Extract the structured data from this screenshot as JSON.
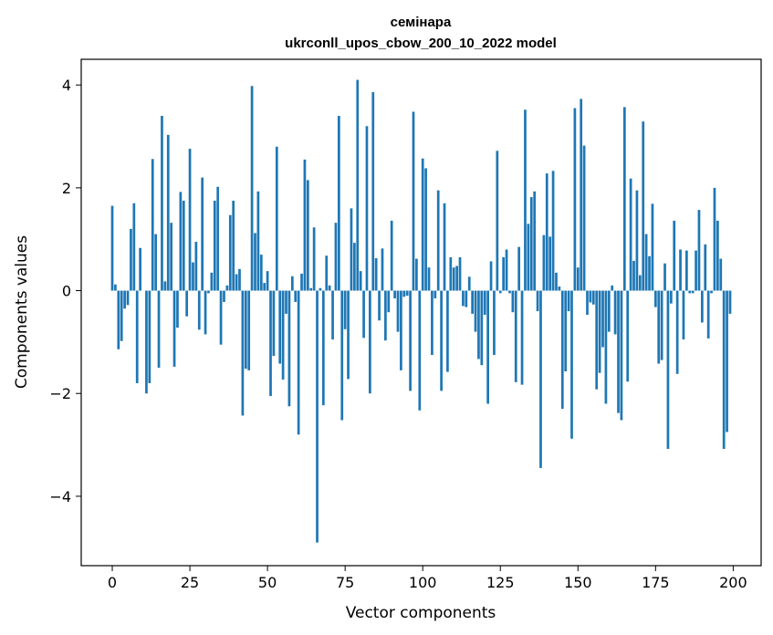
{
  "chart_data": {
    "type": "bar",
    "title": "семінара",
    "subtitle": "ukrconll_upos_cbow_200_10_2022 model",
    "xlabel": "Vector components",
    "ylabel": "Components values",
    "xlim": [
      -10,
      209
    ],
    "ylim": [
      -5.35,
      4.5
    ],
    "xticks": [
      0,
      25,
      50,
      75,
      100,
      125,
      150,
      175,
      200
    ],
    "yticks": [
      -4,
      -2,
      0,
      2,
      4
    ],
    "ytick_labels": [
      "−4",
      "−2",
      "0",
      "2",
      "4"
    ],
    "grid": false,
    "bar_color": "#1f77b4",
    "x": [
      0,
      1,
      2,
      3,
      4,
      5,
      6,
      7,
      8,
      9,
      10,
      11,
      12,
      13,
      14,
      15,
      16,
      17,
      18,
      19,
      20,
      21,
      22,
      23,
      24,
      25,
      26,
      27,
      28,
      29,
      30,
      31,
      32,
      33,
      34,
      35,
      36,
      37,
      38,
      39,
      40,
      41,
      42,
      43,
      44,
      45,
      46,
      47,
      48,
      49,
      50,
      51,
      52,
      53,
      54,
      55,
      56,
      57,
      58,
      59,
      60,
      61,
      62,
      63,
      64,
      65,
      66,
      67,
      68,
      69,
      70,
      71,
      72,
      73,
      74,
      75,
      76,
      77,
      78,
      79,
      80,
      81,
      82,
      83,
      84,
      85,
      86,
      87,
      88,
      89,
      90,
      91,
      92,
      93,
      94,
      95,
      96,
      97,
      98,
      99,
      100,
      101,
      102,
      103,
      104,
      105,
      106,
      107,
      108,
      109,
      110,
      111,
      112,
      113,
      114,
      115,
      116,
      117,
      118,
      119,
      120,
      121,
      122,
      123,
      124,
      125,
      126,
      127,
      128,
      129,
      130,
      131,
      132,
      133,
      134,
      135,
      136,
      137,
      138,
      139,
      140,
      141,
      142,
      143,
      144,
      145,
      146,
      147,
      148,
      149,
      150,
      151,
      152,
      153,
      154,
      155,
      156,
      157,
      158,
      159,
      160,
      161,
      162,
      163,
      164,
      165,
      166,
      167,
      168,
      169,
      170,
      171,
      172,
      173,
      174,
      175,
      176,
      177,
      178,
      179,
      180,
      181,
      182,
      183,
      184,
      185,
      186,
      187,
      188,
      189,
      190,
      191,
      192,
      193,
      194,
      195,
      196,
      197,
      198,
      199
    ],
    "values": [
      1.65,
      0.12,
      -1.14,
      -0.98,
      -0.35,
      -0.28,
      1.2,
      1.7,
      -1.8,
      0.83,
      0,
      -2.0,
      -1.8,
      2.56,
      1.1,
      -1.5,
      3.4,
      0.18,
      3.03,
      1.32,
      -1.48,
      -0.72,
      1.92,
      1.75,
      -0.5,
      2.76,
      0.55,
      0.95,
      -0.76,
      2.2,
      -0.85,
      -0.05,
      0.35,
      1.75,
      2.02,
      -1.05,
      -0.22,
      0.1,
      1.47,
      1.75,
      0.32,
      0.42,
      -2.43,
      -1.52,
      -1.55,
      3.98,
      1.12,
      1.93,
      0.7,
      0.15,
      0.38,
      -2.05,
      -1.27,
      2.8,
      -1.42,
      -1.73,
      -0.45,
      -2.25,
      0.28,
      -0.22,
      -2.8,
      0.33,
      2.55,
      2.15,
      0.05,
      1.23,
      -4.9,
      0.05,
      -2.23,
      0.68,
      0.1,
      -0.95,
      1.32,
      3.4,
      -2.52,
      -0.75,
      -1.72,
      1.6,
      0.93,
      4.1,
      0.38,
      -0.92,
      3.2,
      -2.0,
      3.86,
      0.63,
      -0.58,
      0.82,
      -0.97,
      -0.42,
      1.36,
      -0.15,
      -0.8,
      -1.55,
      -0.12,
      -0.1,
      -1.95,
      3.48,
      0.62,
      -2.33,
      2.57,
      2.38,
      0.45,
      -1.25,
      -0.15,
      1.95,
      -1.95,
      1.7,
      -1.58,
      0.65,
      0.45,
      0.48,
      0.65,
      -0.3,
      -0.32,
      0.27,
      -0.45,
      -0.8,
      -1.33,
      -1.45,
      -0.47,
      -2.2,
      0.57,
      -1.25,
      2.72,
      -0.05,
      0.65,
      0.8,
      -0.05,
      -0.42,
      -1.78,
      0.85,
      -1.83,
      3.52,
      1.3,
      1.82,
      1.93,
      -0.4,
      -3.45,
      1.08,
      2.28,
      1.05,
      2.33,
      0.35,
      0.08,
      -2.3,
      -1.57,
      -0.4,
      -2.88,
      3.55,
      0.45,
      3.73,
      2.82,
      -0.47,
      -0.23,
      -0.27,
      -1.92,
      -1.6,
      -1.1,
      -2.2,
      -0.8,
      0.1,
      -0.85,
      -2.38,
      -2.52,
      3.57,
      -1.77,
      2.18,
      0.58,
      1.95,
      0.3,
      3.29,
      1.1,
      0.67,
      1.69,
      -0.32,
      -1.42,
      -1.35,
      0.53,
      -3.08,
      -0.25,
      1.36,
      -1.62,
      0.8,
      -0.95,
      0.78,
      -0.05,
      -0.05,
      0.78,
      1.57,
      -0.62,
      0.9,
      -0.93,
      -0.05,
      2.0,
      1.36,
      0.62,
      -3.08,
      -2.75,
      -0.45
    ]
  }
}
